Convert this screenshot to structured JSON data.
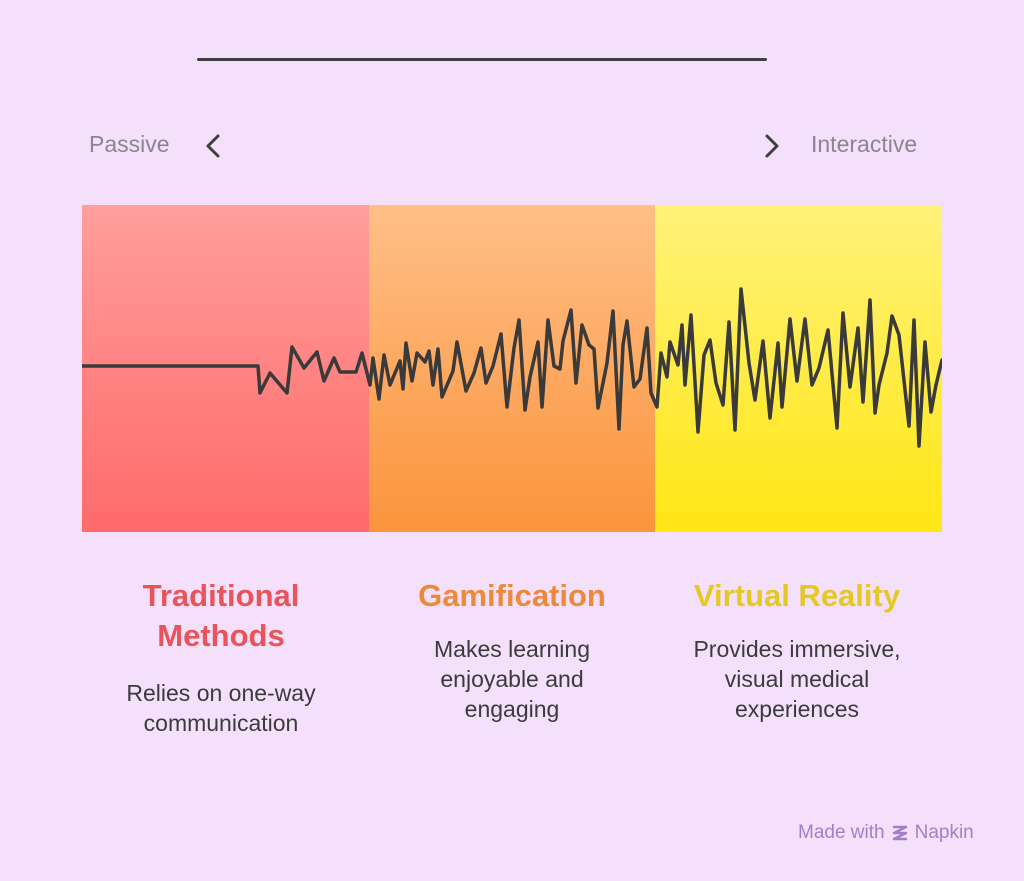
{
  "scale": {
    "left_label": "Passive",
    "right_label": "Interactive"
  },
  "segments": [
    {
      "title_line1": "Traditional",
      "title_line2": "Methods",
      "desc_line1": "Relies on one-way",
      "desc_line2": "communication",
      "desc_line3": "",
      "color_top": "#ff9e9b",
      "color_bottom": "#ff6b6b",
      "title_color": "#e8545a"
    },
    {
      "title_line1": "Gamification",
      "title_line2": "",
      "desc_line1": "Makes learning",
      "desc_line2": "enjoyable and",
      "desc_line3": "engaging",
      "color_top": "#ffbf87",
      "color_bottom": "#fb943c",
      "title_color": "#ec8a3c"
    },
    {
      "title_line1": "Virtual Reality",
      "title_line2": "",
      "desc_line1": "Provides immersive,",
      "desc_line2": "visual medical",
      "desc_line3": "experiences",
      "color_top": "#fff27a",
      "color_bottom": "#ffe614",
      "title_color": "#e6c825"
    }
  ],
  "footer": {
    "made_with": "Made with",
    "brand": "Napkin"
  }
}
